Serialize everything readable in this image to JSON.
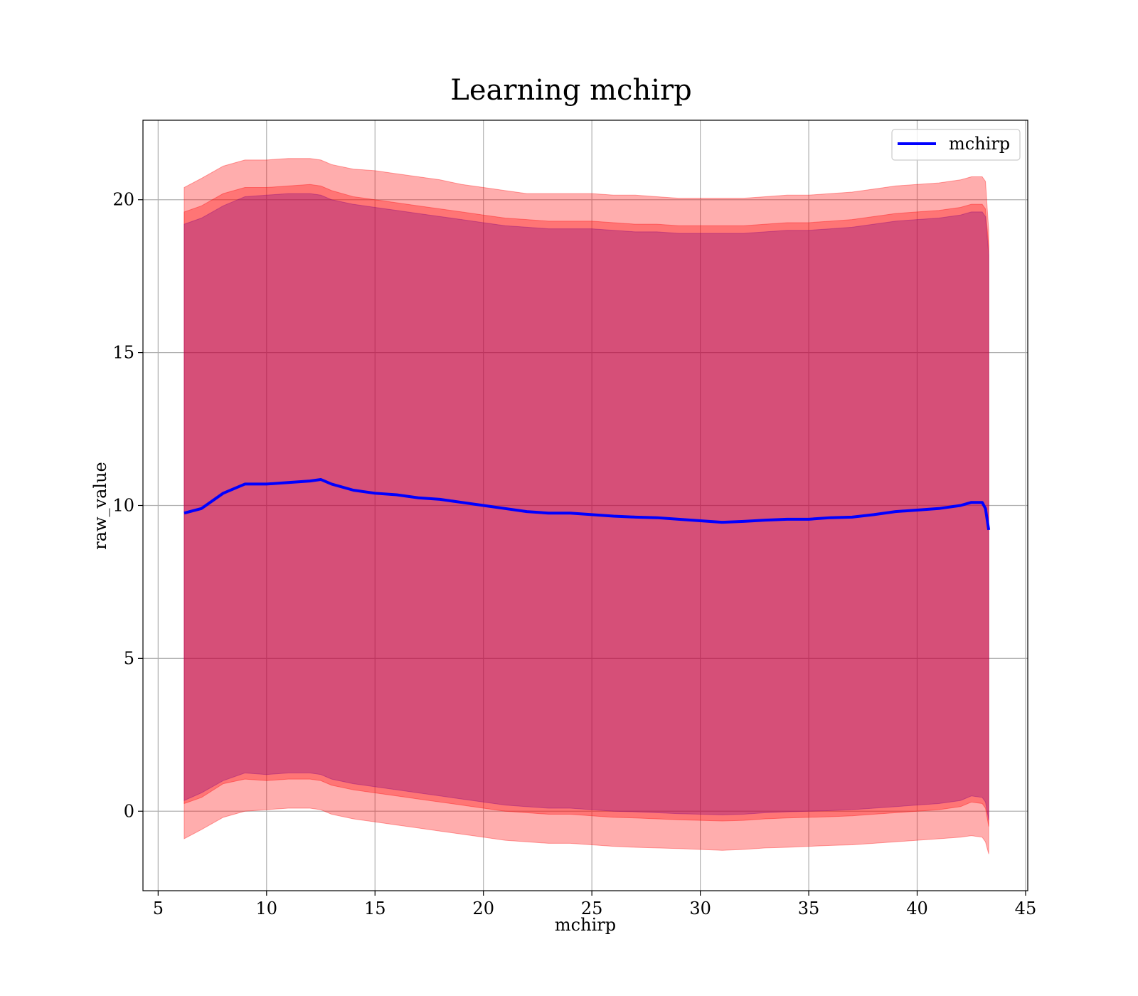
{
  "chart_data": {
    "type": "area",
    "title": "Learning mchirp",
    "xlabel": "mchirp",
    "ylabel": "raw_value",
    "xlim": [
      4.3,
      45.1
    ],
    "ylim": [
      -2.6,
      22.6
    ],
    "xticks": [
      5,
      10,
      15,
      20,
      25,
      30,
      35,
      40,
      45
    ],
    "yticks": [
      0,
      5,
      10,
      15,
      20
    ],
    "grid": true,
    "legend_position": "top-right",
    "x": [
      6.2,
      7.0,
      8.0,
      9.0,
      10.0,
      11.0,
      12.0,
      12.5,
      13.0,
      14.0,
      15.0,
      16.0,
      17.0,
      18.0,
      19.0,
      20.0,
      21.0,
      22.0,
      23.0,
      24.0,
      25.0,
      26.0,
      27.0,
      28.0,
      29.0,
      30.0,
      31.0,
      32.0,
      33.0,
      34.0,
      35.0,
      36.0,
      37.0,
      38.0,
      39.0,
      40.0,
      41.0,
      42.0,
      42.5,
      43.0,
      43.15,
      43.3
    ],
    "series": [
      {
        "name": "mchirp",
        "color": "#0000ff",
        "values": [
          9.75,
          9.9,
          10.4,
          10.7,
          10.7,
          10.75,
          10.8,
          10.85,
          10.7,
          10.5,
          10.4,
          10.35,
          10.25,
          10.2,
          10.1,
          10.0,
          9.9,
          9.8,
          9.75,
          9.75,
          9.7,
          9.65,
          9.62,
          9.6,
          9.55,
          9.5,
          9.45,
          9.48,
          9.52,
          9.55,
          9.55,
          9.6,
          9.62,
          9.7,
          9.8,
          9.85,
          9.9,
          10.0,
          10.1,
          10.1,
          9.9,
          9.2
        ]
      }
    ],
    "bands": [
      {
        "color": "#ff0000",
        "upper": [
          20.4,
          20.7,
          21.1,
          21.3,
          21.3,
          21.35,
          21.35,
          21.3,
          21.15,
          21.0,
          20.95,
          20.85,
          20.75,
          20.65,
          20.5,
          20.4,
          20.3,
          20.2,
          20.2,
          20.2,
          20.2,
          20.15,
          20.15,
          20.1,
          20.05,
          20.05,
          20.05,
          20.05,
          20.1,
          20.15,
          20.15,
          20.2,
          20.25,
          20.35,
          20.45,
          20.5,
          20.55,
          20.65,
          20.75,
          20.75,
          20.6,
          19.0
        ],
        "lower": [
          -0.9,
          -0.6,
          -0.2,
          0.0,
          0.05,
          0.1,
          0.1,
          0.05,
          -0.1,
          -0.25,
          -0.35,
          -0.45,
          -0.55,
          -0.65,
          -0.75,
          -0.85,
          -0.95,
          -1.0,
          -1.05,
          -1.05,
          -1.1,
          -1.15,
          -1.18,
          -1.2,
          -1.22,
          -1.25,
          -1.28,
          -1.25,
          -1.2,
          -1.18,
          -1.15,
          -1.12,
          -1.1,
          -1.05,
          -1.0,
          -0.95,
          -0.9,
          -0.85,
          -0.8,
          -0.85,
          -1.0,
          -1.4
        ]
      },
      {
        "color": "#ff0000",
        "upper": [
          19.6,
          19.8,
          20.2,
          20.4,
          20.4,
          20.45,
          20.5,
          20.45,
          20.3,
          20.1,
          20.0,
          19.9,
          19.8,
          19.7,
          19.6,
          19.5,
          19.4,
          19.35,
          19.3,
          19.3,
          19.3,
          19.25,
          19.2,
          19.2,
          19.15,
          19.15,
          19.15,
          19.15,
          19.2,
          19.25,
          19.25,
          19.3,
          19.35,
          19.45,
          19.55,
          19.6,
          19.65,
          19.75,
          19.85,
          19.85,
          19.7,
          18.5
        ],
        "lower": [
          0.25,
          0.45,
          0.9,
          1.05,
          1.0,
          1.05,
          1.05,
          1.0,
          0.85,
          0.7,
          0.6,
          0.5,
          0.4,
          0.3,
          0.2,
          0.1,
          0.0,
          -0.05,
          -0.1,
          -0.1,
          -0.15,
          -0.2,
          -0.22,
          -0.25,
          -0.28,
          -0.3,
          -0.32,
          -0.3,
          -0.25,
          -0.22,
          -0.2,
          -0.18,
          -0.15,
          -0.1,
          -0.05,
          0.0,
          0.05,
          0.15,
          0.3,
          0.25,
          0.1,
          -0.5
        ]
      },
      {
        "color": "#800080",
        "upper": [
          19.2,
          19.4,
          19.8,
          20.1,
          20.15,
          20.2,
          20.2,
          20.15,
          20.0,
          19.85,
          19.75,
          19.65,
          19.55,
          19.45,
          19.35,
          19.25,
          19.15,
          19.1,
          19.05,
          19.05,
          19.05,
          19.0,
          18.95,
          18.95,
          18.9,
          18.9,
          18.9,
          18.9,
          18.95,
          19.0,
          19.0,
          19.05,
          19.1,
          19.2,
          19.3,
          19.35,
          19.4,
          19.5,
          19.6,
          19.6,
          19.45,
          18.2
        ],
        "lower": [
          0.35,
          0.6,
          1.0,
          1.25,
          1.2,
          1.25,
          1.25,
          1.2,
          1.05,
          0.9,
          0.8,
          0.7,
          0.6,
          0.5,
          0.4,
          0.3,
          0.2,
          0.15,
          0.1,
          0.1,
          0.05,
          0.0,
          -0.02,
          -0.05,
          -0.08,
          -0.1,
          -0.12,
          -0.1,
          -0.05,
          -0.02,
          0.0,
          0.02,
          0.05,
          0.1,
          0.15,
          0.2,
          0.25,
          0.35,
          0.5,
          0.45,
          0.3,
          -0.3
        ]
      }
    ]
  }
}
